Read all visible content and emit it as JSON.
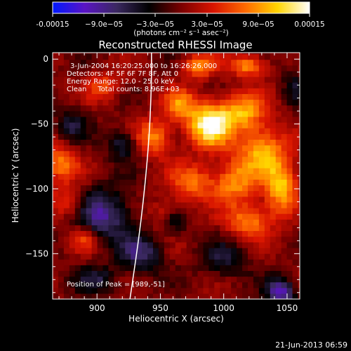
{
  "colorbar": {
    "tick_labels": [
      "-0.00015",
      "−9.0e−05",
      "−3.0e−05",
      "3.0e−05",
      "9.0e−05",
      "0.00015"
    ],
    "unit_label": "(photons cm⁻² s⁻¹ asec⁻²)",
    "colors": [
      "#0018ff",
      "#5a14c4",
      "#3a2860",
      "#000000",
      "#7a0000",
      "#d81400",
      "#ff6a00",
      "#ffd400",
      "#ffffff"
    ]
  },
  "chart_data": {
    "type": "heatmap",
    "title": "Reconstructed RHESSI Image",
    "xlabel": "Heliocentric X (arcsec)",
    "ylabel": "Heliocentric Y (arcsec)",
    "xlim": [
      865,
      1060
    ],
    "ylim": [
      -185,
      5
    ],
    "value_range": [
      -0.00015,
      0.00015
    ],
    "x_ticks": [
      900,
      950,
      1000,
      1050
    ],
    "y_ticks": [
      0,
      -50,
      -100,
      -150
    ],
    "annotations": [
      "3-Jun-2004 16:20:25.000 to 16:26:26.000",
      "Detectors: 4F 5F 6F 7F 8F, Att 0",
      "Energy Range: 12.0 - 25.0 keV",
      "Clean     Total counts: 8.96E+03"
    ],
    "peak_label": "Position of Peak = [989,-51]",
    "peak": [
      989,
      -51
    ],
    "limb": [
      [
        926,
        -185
      ],
      [
        935,
        -125
      ],
      [
        941,
        -65
      ],
      [
        943,
        -20
      ],
      [
        943,
        5
      ]
    ],
    "blobs": [
      {
        "x": 989,
        "y": -50,
        "sx": 12,
        "sy": 12,
        "a": 1.0
      },
      {
        "x": 945,
        "y": -60,
        "sx": 10,
        "sy": 10,
        "a": 0.55
      },
      {
        "x": 965,
        "y": -35,
        "sx": 9,
        "sy": 9,
        "a": 0.5
      },
      {
        "x": 1015,
        "y": -40,
        "sx": 12,
        "sy": 10,
        "a": 0.6
      },
      {
        "x": 1030,
        "y": -70,
        "sx": 14,
        "sy": 14,
        "a": 0.65
      },
      {
        "x": 1008,
        "y": -95,
        "sx": 12,
        "sy": 12,
        "a": 0.55
      },
      {
        "x": 1045,
        "y": -100,
        "sx": 9,
        "sy": 14,
        "a": 0.7
      },
      {
        "x": 975,
        "y": -95,
        "sx": 12,
        "sy": 10,
        "a": 0.5
      },
      {
        "x": 955,
        "y": -120,
        "sx": 9,
        "sy": 9,
        "a": 0.35
      },
      {
        "x": 1020,
        "y": -125,
        "sx": 12,
        "sy": 9,
        "a": 0.55
      },
      {
        "x": 980,
        "y": -5,
        "sx": 9,
        "sy": 6,
        "a": 0.55
      },
      {
        "x": 1020,
        "y": -5,
        "sx": 10,
        "sy": 6,
        "a": 0.6
      },
      {
        "x": 870,
        "y": -80,
        "sx": 10,
        "sy": 10,
        "a": 0.55
      },
      {
        "x": 878,
        "y": -110,
        "sx": 9,
        "sy": 9,
        "a": 0.4
      },
      {
        "x": 890,
        "y": -138,
        "sx": 7,
        "sy": 7,
        "a": 0.4
      },
      {
        "x": 905,
        "y": -20,
        "sx": 10,
        "sy": 8,
        "a": 0.35
      },
      {
        "x": 920,
        "y": -65,
        "sx": 8,
        "sy": 8,
        "a": -0.45
      },
      {
        "x": 905,
        "y": -120,
        "sx": 16,
        "sy": 14,
        "a": -0.6
      },
      {
        "x": 935,
        "y": -150,
        "sx": 12,
        "sy": 10,
        "a": -0.5
      },
      {
        "x": 960,
        "y": -125,
        "sx": 7,
        "sy": 7,
        "a": -0.45
      },
      {
        "x": 1045,
        "y": -180,
        "sx": 8,
        "sy": 8,
        "a": -0.7
      },
      {
        "x": 1000,
        "y": -155,
        "sx": 12,
        "sy": 10,
        "a": -0.35
      },
      {
        "x": 880,
        "y": -50,
        "sx": 9,
        "sy": 9,
        "a": -0.35
      },
      {
        "x": 900,
        "y": -170,
        "sx": 12,
        "sy": 8,
        "a": -0.35
      },
      {
        "x": 1055,
        "y": -20,
        "sx": 6,
        "sy": 10,
        "a": -0.3
      }
    ]
  },
  "footer": {
    "timestamp": "21-Jun-2013 06:59"
  }
}
